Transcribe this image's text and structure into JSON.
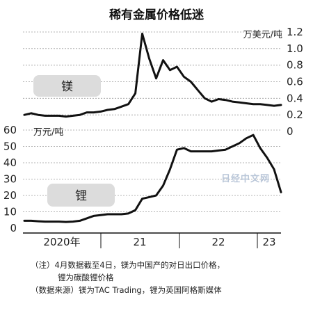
{
  "chart_data": {
    "type": "line",
    "title": "稀有金属价格低迷",
    "x_ticks": [
      "2020年",
      "21",
      "22",
      "23"
    ],
    "panels": [
      {
        "name": "镁",
        "unit": "万美元/吨",
        "yticks": [
          "1.2",
          "1.0",
          "0.8",
          "0.6",
          "0.4",
          "0.2",
          "0"
        ],
        "ylim": [
          0,
          1.2
        ],
        "axis_side": "right",
        "x": [
          0,
          1,
          2,
          3,
          4,
          5,
          6,
          7,
          8,
          9,
          10,
          11,
          12,
          13,
          14,
          15,
          16,
          17,
          18,
          19,
          20,
          21,
          22,
          23,
          24,
          25,
          26,
          27,
          28,
          29,
          30,
          31,
          32,
          33,
          34,
          35,
          36,
          37
        ],
        "values": [
          0.2,
          0.22,
          0.2,
          0.19,
          0.19,
          0.19,
          0.18,
          0.19,
          0.2,
          0.23,
          0.23,
          0.24,
          0.26,
          0.27,
          0.3,
          0.33,
          0.46,
          1.18,
          0.88,
          0.64,
          0.86,
          0.74,
          0.78,
          0.66,
          0.6,
          0.5,
          0.4,
          0.36,
          0.39,
          0.38,
          0.36,
          0.35,
          0.34,
          0.33,
          0.33,
          0.32,
          0.31,
          0.32
        ]
      },
      {
        "name": "锂",
        "unit": "万元/吨",
        "yticks": [
          "60",
          "50",
          "40",
          "30",
          "20",
          "10",
          "0"
        ],
        "ylim": [
          0,
          60
        ],
        "axis_side": "left",
        "x": [
          0,
          1,
          2,
          3,
          4,
          5,
          6,
          7,
          8,
          9,
          10,
          11,
          12,
          13,
          14,
          15,
          16,
          17,
          18,
          19,
          20,
          21,
          22,
          23,
          24,
          25,
          26,
          27,
          28,
          29,
          30,
          31,
          32,
          33,
          34,
          35,
          36,
          37
        ],
        "values": [
          4.5,
          4.5,
          4.2,
          4.0,
          4.0,
          4.0,
          3.8,
          4.0,
          4.5,
          6.0,
          7.5,
          8.0,
          8.5,
          8.5,
          8.5,
          9.0,
          11.0,
          18.0,
          19.0,
          20.0,
          26.0,
          36.0,
          48.0,
          49.0,
          47.0,
          47.0,
          47.0,
          47.0,
          47.5,
          48.0,
          50.0,
          52.0,
          55.0,
          57.0,
          49.0,
          43.0,
          36.0,
          22.0
        ]
      }
    ],
    "notes": [
      "（注）4月数据截至4日，镁为中国产的对日出口价格，",
      "锂为碳酸锂价格",
      "（数据来源）镁为TAC Trading，锂为英国阿格斯媒体"
    ],
    "watermark": "日经中文网"
  }
}
